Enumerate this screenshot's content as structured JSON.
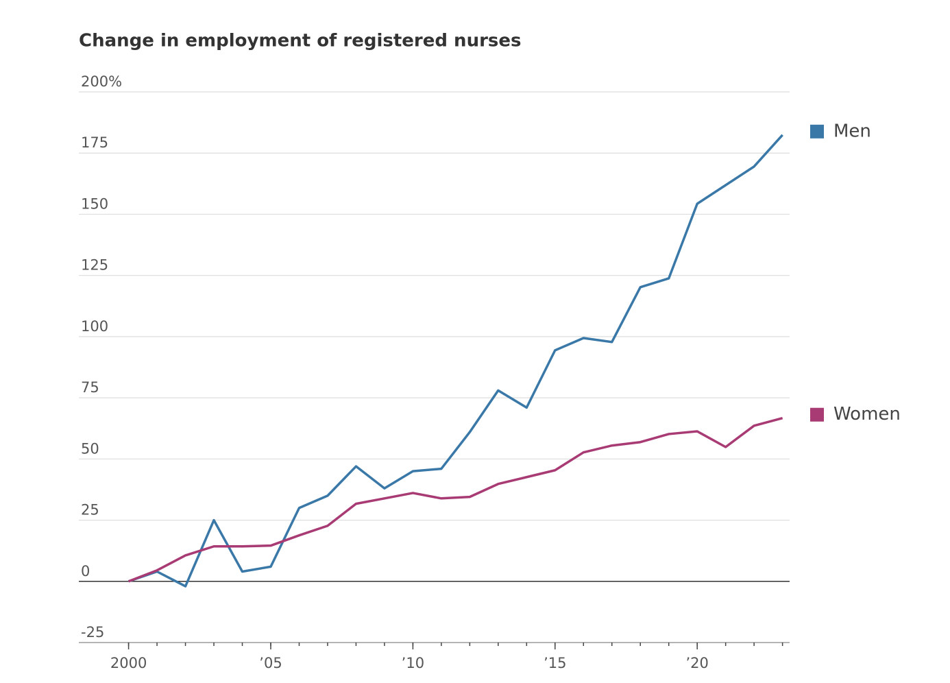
{
  "chart_data": {
    "type": "line",
    "title": "Change in employment of registered nurses",
    "x": [
      2000,
      2001,
      2002,
      2003,
      2004,
      2005,
      2006,
      2007,
      2008,
      2009,
      2010,
      2011,
      2012,
      2013,
      2014,
      2015,
      2016,
      2017,
      2018,
      2019,
      2020,
      2021,
      2022,
      2023
    ],
    "series": [
      {
        "name": "Men",
        "color": "#3a78a8",
        "values": [
          0,
          4,
          -2,
          25,
          4,
          6,
          30,
          35,
          47,
          38,
          45,
          46,
          61,
          78,
          71,
          94.4,
          99.4,
          97.8,
          120.2,
          123.8,
          154.3,
          161.9,
          169.5,
          182.4
        ]
      },
      {
        "name": "Women",
        "color": "#a83a74",
        "values": [
          0,
          4.5,
          10.6,
          14.3,
          14.3,
          14.6,
          18.8,
          22.7,
          31.7,
          33.9,
          36.1,
          33.9,
          34.5,
          39.8,
          42.6,
          45.4,
          52.7,
          55.5,
          56.9,
          60.2,
          61.3,
          54.9,
          63.6,
          66.7
        ]
      }
    ],
    "xlim": [
      1998.25,
      2023.25
    ],
    "xticks": [
      2000,
      {
        "value": 2005,
        "label": "’05"
      },
      {
        "value": 2010,
        "label": "’10"
      },
      {
        "value": 2015,
        "label": "’15"
      },
      {
        "value": 2020,
        "label": "’20"
      }
    ],
    "ylim": [
      -25,
      200
    ],
    "yticks": [
      -25,
      0,
      25,
      50,
      75,
      100,
      125,
      150,
      {
        "value": 200,
        "label": "200%"
      },
      175
    ],
    "grid": true,
    "legend": "right"
  }
}
